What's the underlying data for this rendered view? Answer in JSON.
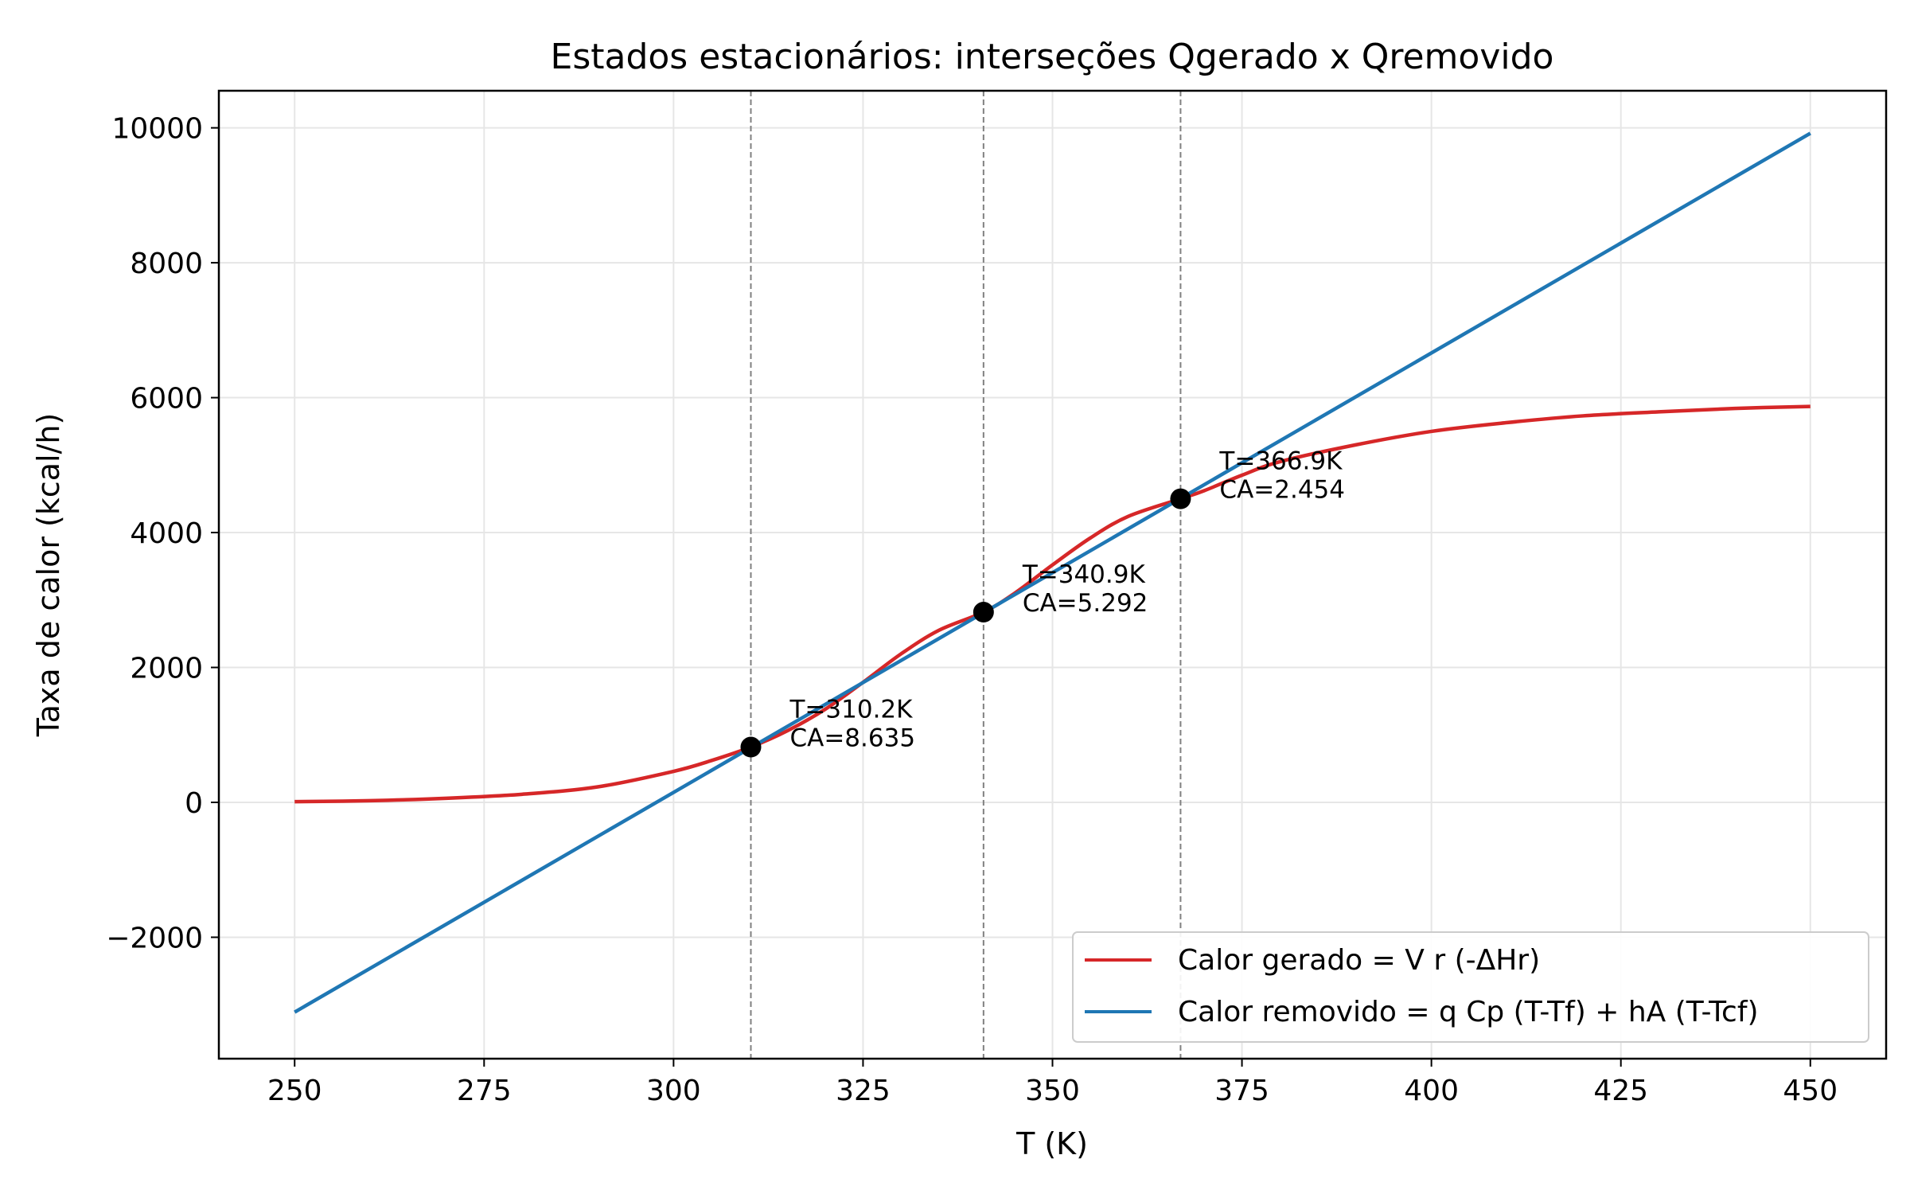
{
  "chart_data": {
    "type": "line",
    "title": "Estados estacionários: interseções Qgerado x Qremovido",
    "xlabel": "T (K)",
    "ylabel": "Taxa de calor (kcal/h)",
    "xlim": [
      240,
      460
    ],
    "ylim": [
      -3800,
      10550
    ],
    "x_ticks": [
      250,
      275,
      300,
      325,
      350,
      375,
      400,
      425,
      450
    ],
    "x_tick_labels": [
      "250",
      "275",
      "300",
      "325",
      "350",
      "375",
      "400",
      "425",
      "450"
    ],
    "y_ticks": [
      -2000,
      0,
      2000,
      4000,
      6000,
      8000,
      10000
    ],
    "y_tick_labels": [
      "−2000",
      "0",
      "2000",
      "4000",
      "6000",
      "8000",
      "10000"
    ],
    "grid": true,
    "legend_position": "bottom-right",
    "series": [
      {
        "name": "Calor gerado = V r (-ΔHr)",
        "color": "#d62728",
        "x": [
          250,
          260,
          270,
          280,
          290,
          300,
          305,
          310.2,
          315,
          320,
          325,
          330,
          335,
          340.9,
          345,
          350,
          355,
          360,
          366.9,
          370,
          375,
          380,
          390,
          400,
          410,
          420,
          430,
          440,
          450
        ],
        "y": [
          10,
          25,
          60,
          120,
          230,
          460,
          620,
          820,
          1060,
          1380,
          1780,
          2200,
          2550,
          2820,
          3100,
          3520,
          3920,
          4240,
          4500,
          4620,
          4850,
          5050,
          5300,
          5500,
          5630,
          5730,
          5790,
          5840,
          5870
        ]
      },
      {
        "name": "Calor removido = q Cp (T-Tf) + hA (T-Tcf)",
        "color": "#1f77b4",
        "x": [
          250,
          450
        ],
        "y": [
          -3110,
          9920
        ]
      }
    ],
    "steady_states": [
      {
        "T": 310.2,
        "Q": 820,
        "label_T": "T=310.2K",
        "label_CA": "CA=8.635"
      },
      {
        "T": 340.9,
        "Q": 2820,
        "label_T": "T=340.9K",
        "label_CA": "CA=5.292"
      },
      {
        "T": 366.9,
        "Q": 4500,
        "label_T": "T=366.9K",
        "label_CA": "CA=2.454"
      }
    ],
    "vline_color": "#808080",
    "grid_color": "#e6e6e6",
    "marker_color": "#000000"
  }
}
